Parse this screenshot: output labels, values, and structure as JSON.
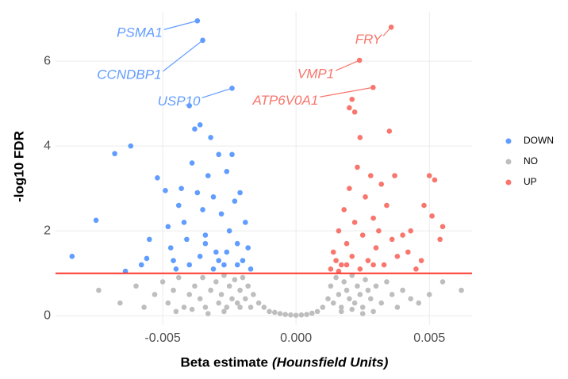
{
  "chart_data": {
    "type": "scatter",
    "xlabel": "Beta estimate",
    "xlabel_italic": "(Hounsfield Units)",
    "ylabel": "-log10 FDR",
    "xlim": [
      -0.00902,
      0.0066
    ],
    "ylim": [
      -0.22,
      7.16
    ],
    "xticks": [
      -0.005,
      {
        "value": 0,
        "label": "0.000"
      },
      0.005
    ],
    "yticks": [
      0,
      2,
      4,
      6
    ],
    "grid": true,
    "legend": "right",
    "hline": {
      "y": 1,
      "color": "#ff2a1f"
    },
    "series": [
      {
        "name": "DOWN",
        "color": "#619CFF",
        "x": [
          -0.0084,
          -0.0075,
          -0.0068,
          -0.0062,
          -0.0064,
          -0.0058,
          -0.0056,
          -0.0052,
          -0.0055,
          -0.0049,
          -0.0048,
          -0.0047,
          -0.0046,
          -0.0044,
          -0.0043,
          -0.0042,
          -0.0041,
          -0.004,
          -0.0039,
          -0.0038,
          -0.0037,
          -0.0036,
          -0.0035,
          -0.0034,
          -0.0033,
          -0.0032,
          -0.0031,
          -0.003,
          -0.0029,
          -0.0028,
          -0.0027,
          -0.0026,
          -0.0025,
          -0.0024,
          -0.0023,
          -0.0022,
          -0.0021,
          -0.002,
          -0.0019,
          -0.0018,
          -0.0017,
          -0.004,
          -0.0036,
          -0.0031,
          -0.0026,
          -0.0022,
          -0.0045,
          -0.0034,
          -0.0029,
          -0.0037,
          -0.0035,
          -0.0024
        ],
        "values": [
          1.4,
          2.25,
          3.82,
          4.0,
          1.05,
          1.2,
          1.35,
          3.25,
          1.8,
          2.95,
          2.1,
          1.6,
          1.3,
          2.6,
          3.0,
          2.2,
          1.8,
          4.95,
          3.6,
          4.4,
          2.9,
          4.5,
          2.5,
          1.9,
          3.3,
          4.2,
          2.8,
          1.5,
          3.8,
          2.4,
          1.2,
          3.4,
          2.0,
          3.8,
          2.7,
          1.7,
          2.9,
          1.3,
          2.2,
          1.6,
          1.1,
          1.2,
          1.4,
          1.1,
          1.5,
          1.2,
          1.1,
          1.7,
          1.3,
          6.95,
          6.49,
          5.36
        ]
      },
      {
        "name": "NO",
        "color": "#BEBEBE",
        "x": [
          -0.0074,
          -0.0066,
          -0.006,
          -0.0057,
          -0.0053,
          -0.005,
          -0.0048,
          -0.0046,
          -0.0044,
          -0.0042,
          -0.004,
          -0.0038,
          -0.0036,
          -0.0035,
          -0.0034,
          -0.0032,
          -0.003,
          -0.0029,
          -0.0028,
          -0.0027,
          -0.0026,
          -0.0025,
          -0.0024,
          -0.0023,
          -0.0022,
          -0.0021,
          -0.002,
          -0.0019,
          -0.0018,
          -0.0017,
          -0.0016,
          -0.0014,
          -0.0012,
          -0.001,
          -0.0008,
          -0.0006,
          -0.0004,
          -0.0002,
          0,
          0.0002,
          0.0004,
          0.0006,
          0.0008,
          0.001,
          0.0012,
          0.0013,
          0.0014,
          0.0015,
          0.0016,
          0.0017,
          0.0018,
          0.0019,
          0.002,
          0.0021,
          0.0022,
          0.0023,
          0.0024,
          0.0025,
          0.0026,
          0.0027,
          0.0028,
          0.003,
          0.0032,
          0.0034,
          0.0036,
          0.0038,
          0.004,
          0.0043,
          0.0046,
          0.005,
          0.0055,
          0.0062,
          -0.0045,
          -0.0039,
          -0.0033,
          -0.0027,
          -0.0021,
          0.0017,
          0.0021,
          0.0025,
          0.0029
        ],
        "values": [
          0.6,
          0.3,
          0.7,
          0.2,
          0.5,
          0.8,
          0.3,
          0.6,
          0.9,
          0.2,
          0.5,
          0.7,
          0.4,
          0.9,
          0.2,
          0.6,
          0.8,
          0.3,
          0.5,
          0.95,
          0.2,
          0.7,
          0.4,
          0.85,
          0.3,
          0.6,
          0.9,
          0.4,
          0.7,
          0.2,
          0.5,
          0.3,
          0.2,
          0.1,
          0.08,
          0.05,
          0.03,
          0.02,
          0.01,
          0.02,
          0.03,
          0.06,
          0.1,
          0.2,
          0.4,
          0.7,
          0.3,
          0.9,
          0.5,
          0.2,
          0.8,
          0.6,
          0.4,
          0.95,
          0.3,
          0.7,
          0.5,
          0.2,
          0.85,
          0.6,
          0.4,
          0.7,
          0.3,
          0.8,
          0.5,
          0.2,
          0.6,
          0.4,
          0.3,
          0.5,
          0.8,
          0.6,
          0.1,
          0.15,
          0.05,
          0.1,
          0.2,
          0.1,
          0.15,
          0.05,
          0.1
        ]
      },
      {
        "name": "UP",
        "color": "#F8766D",
        "x": [
          0.0013,
          0.0014,
          0.0015,
          0.0016,
          0.0017,
          0.0018,
          0.0019,
          0.002,
          0.0021,
          0.0022,
          0.0022,
          0.0023,
          0.0024,
          0.0025,
          0.0026,
          0.0027,
          0.0028,
          0.0029,
          0.003,
          0.0031,
          0.0032,
          0.0033,
          0.0034,
          0.0035,
          0.0036,
          0.0037,
          0.0038,
          0.004,
          0.0042,
          0.0043,
          0.0045,
          0.0047,
          0.0048,
          0.005,
          0.0051,
          0.0052,
          0.0054,
          0.0055,
          0.0016,
          0.0019,
          0.0024,
          0.0029,
          0.002,
          0.00238,
          0.00289,
          0.00357,
          0.0021
        ],
        "values": [
          1.1,
          1.5,
          1.3,
          2.0,
          1.2,
          2.5,
          1.7,
          3.0,
          1.4,
          2.2,
          4.8,
          3.5,
          4.2,
          1.9,
          2.8,
          1.3,
          3.3,
          2.3,
          1.6,
          2.0,
          3.1,
          1.2,
          2.6,
          4.35,
          1.8,
          3.3,
          1.4,
          1.9,
          1.5,
          2.0,
          1.1,
          1.3,
          2.6,
          3.3,
          2.35,
          3.2,
          1.8,
          2.1,
          1.05,
          1.2,
          1.1,
          1.2,
          4.9,
          6.02,
          5.38,
          6.8,
          5.1
        ]
      }
    ],
    "annotations": [
      {
        "text": "PSMA1",
        "series": 0,
        "index": 49
      },
      {
        "text": "CCNDBP1",
        "series": 0,
        "index": 50
      },
      {
        "text": "USP10",
        "series": 0,
        "index": 51
      },
      {
        "text": "FRY",
        "series": 2,
        "index": 45
      },
      {
        "text": "VMP1",
        "series": 2,
        "index": 43
      },
      {
        "text": "ATP6V0A1",
        "series": 2,
        "index": 44
      }
    ]
  }
}
